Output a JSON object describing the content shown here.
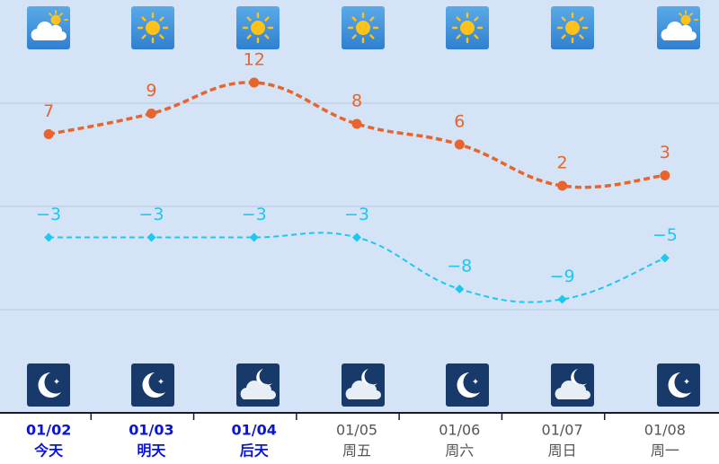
{
  "chart_data": {
    "type": "line",
    "categories": [
      "01/02",
      "01/03",
      "01/04",
      "01/05",
      "01/06",
      "01/07",
      "01/08"
    ],
    "sublabels": [
      "今天",
      "明天",
      "后天",
      "周五",
      "周六",
      "周日",
      "周一"
    ],
    "label_colors": [
      "#0a14d8",
      "#0a14d8",
      "#0a14d8",
      "#555555",
      "#555555",
      "#555555",
      "#555555"
    ],
    "series": [
      {
        "color": "#e8642c",
        "marker": "circle",
        "values": [
          7,
          9,
          12,
          8,
          6,
          2,
          3
        ]
      },
      {
        "color": "#1cc8ef",
        "marker": "diamond",
        "values": [
          -3,
          -3,
          -3,
          -3,
          -8,
          -9,
          -5
        ],
        "value_labels": [
          "−3",
          "−3",
          "−3",
          "−3",
          "−8",
          "−9",
          "−5"
        ]
      }
    ],
    "ylim": [
      -20,
      20
    ],
    "gridlines": [
      -10,
      0,
      10
    ]
  }
}
